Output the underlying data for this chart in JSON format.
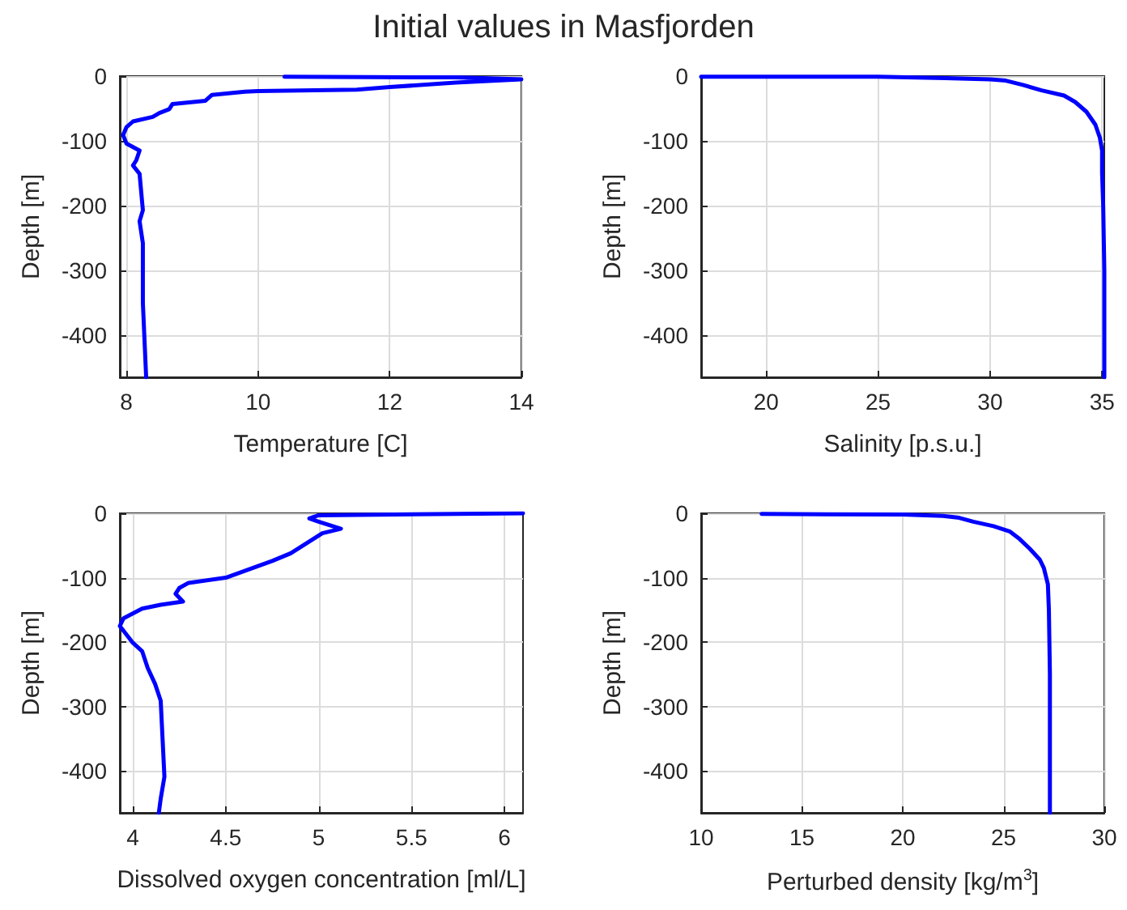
{
  "chart_data": [
    {
      "type": "line",
      "title": "Initial values in Masfjorden",
      "xlabel": "Temperature [C]",
      "ylabel": "Depth [m]",
      "color": "#0000ff",
      "grid": true,
      "x": [
        10.4,
        13,
        14,
        13,
        12,
        11.5,
        10,
        9.8,
        9.3,
        9.2,
        8.7,
        8.65,
        8.5,
        8.4,
        8.1,
        8.0,
        7.95,
        8.0,
        8.2,
        8.15,
        8.1,
        8.2,
        8.25,
        8.2,
        8.25,
        8.25,
        8.3
      ],
      "values": [
        -1,
        -2,
        -5,
        -10,
        -17,
        -21,
        -23,
        -24,
        -29,
        -38,
        -43,
        -51,
        -57,
        -63,
        -70,
        -79,
        -91,
        -104,
        -115,
        -130,
        -138,
        -151,
        -207,
        -224,
        -258,
        -350,
        -465
      ],
      "xlim": [
        7.9,
        14
      ],
      "xticks": [
        8,
        10,
        12,
        14
      ],
      "ylim": [
        -465,
        0
      ],
      "yticks": [
        -400,
        -300,
        -200,
        -100,
        0
      ]
    },
    {
      "type": "line",
      "xlabel": "Salinity [p.s.u.]",
      "ylabel": "Depth [m]",
      "color": "#0000ff",
      "grid": true,
      "x": [
        17.1,
        25,
        28,
        30,
        30.7,
        31.5,
        32.3,
        33.3,
        33.8,
        34.3,
        34.7,
        34.9,
        35.0,
        35.0,
        35.05,
        35.1,
        35.1
      ],
      "values": [
        -1,
        -1,
        -3,
        -5,
        -7,
        -14,
        -22,
        -30,
        -40,
        -55,
        -75,
        -95,
        -115,
        -150,
        -200,
        -300,
        -465
      ],
      "xlim": [
        17.1,
        35.1
      ],
      "xticks": [
        20,
        25,
        30,
        35
      ],
      "ylim": [
        -465,
        0
      ],
      "yticks": [
        -400,
        -300,
        -200,
        -100,
        0
      ]
    },
    {
      "type": "line",
      "xlabel": "Dissolved oxygen concentration [ml/L]",
      "ylabel": "Depth [m]",
      "color": "#0000ff",
      "grid": true,
      "x": [
        6.1,
        5.0,
        4.95,
        5.0,
        5.12,
        5.02,
        4.85,
        4.75,
        4.5,
        4.3,
        4.25,
        4.23,
        4.27,
        4.15,
        4.05,
        3.95,
        3.93,
        4.0,
        4.05,
        4.08,
        4.12,
        4.15,
        4.16,
        4.17,
        4.15,
        4.14
      ],
      "values": [
        0,
        -3,
        -8,
        -13,
        -24,
        -31,
        -62,
        -74,
        -100,
        -108,
        -116,
        -125,
        -137,
        -142,
        -148,
        -163,
        -175,
        -201,
        -214,
        -240,
        -265,
        -291,
        -350,
        -409,
        -443,
        -465
      ],
      "xlim": [
        3.93,
        6.1
      ],
      "xticks": [
        4,
        4.5,
        5,
        5.5,
        6
      ],
      "ylim": [
        -465,
        0
      ],
      "yticks": [
        -400,
        -300,
        -200,
        -100,
        0
      ]
    },
    {
      "type": "line",
      "xlabel": "Perturbed density [kg/m$^{3}$]",
      "ylabel": "Depth [m]",
      "color": "#0000ff",
      "grid": true,
      "x": [
        13,
        20,
        22,
        22.8,
        23.5,
        24.5,
        25.3,
        25.8,
        26.3,
        26.8,
        27.0,
        27.2,
        27.25,
        27.3,
        27.3
      ],
      "values": [
        -1,
        -2,
        -4,
        -7,
        -13,
        -20,
        -28,
        -40,
        -55,
        -72,
        -85,
        -110,
        -150,
        -250,
        -465
      ],
      "xlim": [
        10,
        30
      ],
      "xticks": [
        10,
        15,
        20,
        25,
        30
      ],
      "ylim": [
        -465,
        0
      ],
      "yticks": [
        -400,
        -300,
        -200,
        -100,
        0
      ]
    }
  ]
}
